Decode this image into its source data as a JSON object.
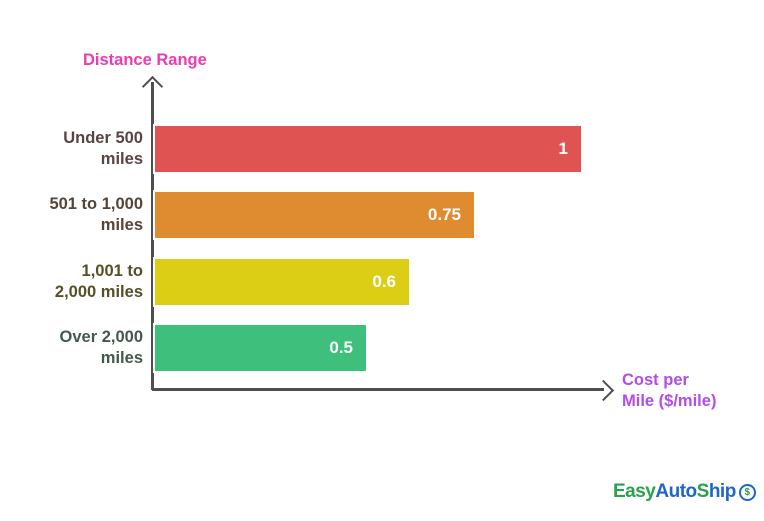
{
  "chart_data": {
    "type": "bar",
    "orientation": "horizontal",
    "title": "",
    "xlabel": "Cost per Mile ($/mile)",
    "ylabel": "Distance Range",
    "xlim": [
      0,
      1
    ],
    "grid": false,
    "legend": false,
    "categories": [
      "Under 500 miles",
      "501 to 1,000 miles",
      "1,001 to 2,000 miles",
      "Over 2,000 miles"
    ],
    "category_label_lines": [
      [
        "Under 500",
        "miles"
      ],
      [
        "501 to 1,000",
        "miles"
      ],
      [
        "1,001 to",
        "2,000 miles"
      ],
      [
        "Over 2,000",
        "miles"
      ]
    ],
    "values": [
      1,
      0.75,
      0.6,
      0.5
    ],
    "value_labels": [
      "1",
      "0.75",
      "0.6",
      "0.5"
    ],
    "bar_colors": [
      "#df5452",
      "#df8b2f",
      "#dbce14",
      "#3ec07c"
    ],
    "category_label_colors": [
      "#5a4343",
      "#554539",
      "#555026",
      "#45584c"
    ]
  },
  "axes": {
    "y_title": "Distance Range",
    "y_title_color": "#ed3bb1",
    "x_title_line1": "Cost per",
    "x_title_line2": "Mile ($/mile)",
    "x_title_color": "#b44ce9",
    "axis_color": "#4f4f4f"
  },
  "logo": {
    "segments": [
      {
        "text": "Easy",
        "color": "#28a24c"
      },
      {
        "text": "Auto",
        "color": "#1f66c9"
      },
      {
        "text": "S",
        "color": "#28a24c"
      },
      {
        "text": "hip",
        "color": "#1f66c9"
      }
    ],
    "icon_symbol": "$",
    "icon_ring_color": "#1f66c9",
    "icon_symbol_color": "#28a24c"
  }
}
